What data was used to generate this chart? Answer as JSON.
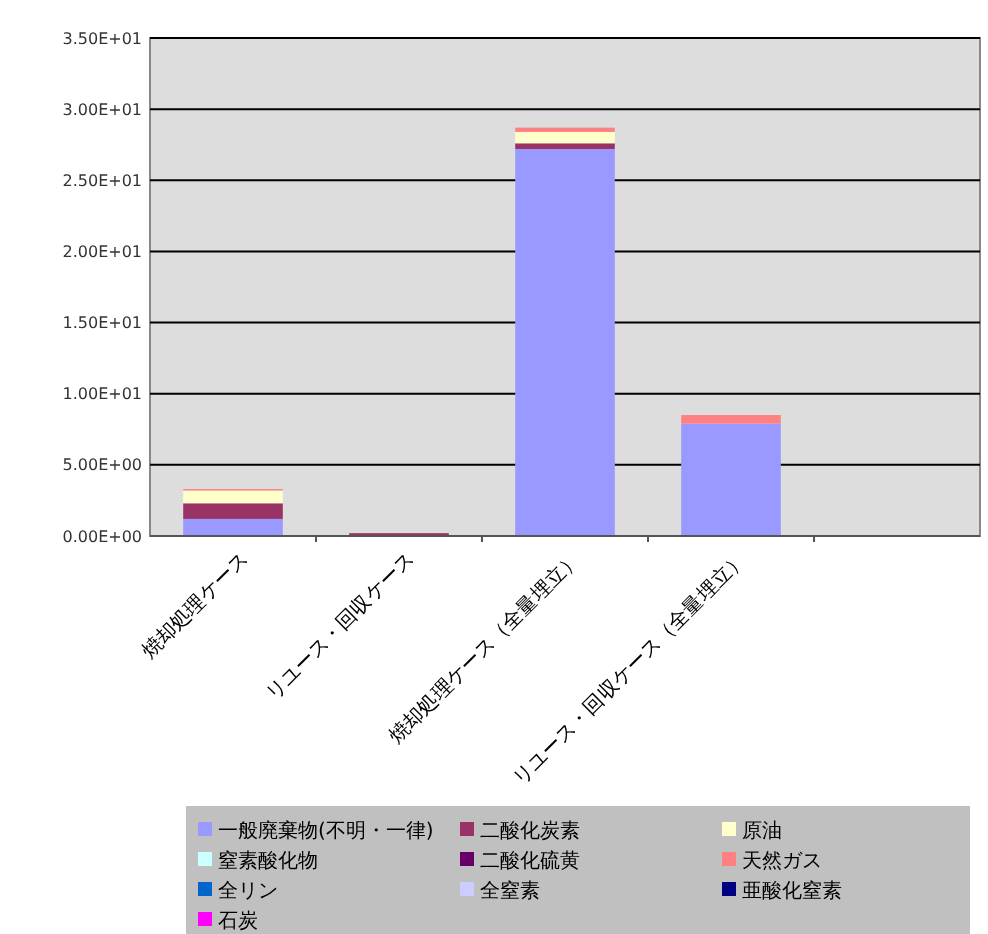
{
  "chart_data": {
    "type": "bar",
    "stacked": true,
    "categories": [
      "焼却処理ケース",
      "リユース・回収ケース",
      "焼却処理ケース（全量埋立）",
      "リユース・回収ケース（全量埋立）",
      null
    ],
    "series": [
      {
        "name": "一般廃棄物(不明・一律)",
        "color": "#9999ff",
        "values": [
          1.2,
          null,
          27.2,
          7.9,
          0
        ]
      },
      {
        "name": "二酸化炭素",
        "color": "#993366",
        "values": [
          1.1,
          0.2,
          0.4,
          0,
          0
        ]
      },
      {
        "name": "原油",
        "color": "#ffffcc",
        "values": [
          0.9,
          0,
          0.8,
          0,
          0
        ]
      },
      {
        "name": "窒素酸化物",
        "color": "#ccffff",
        "values": [
          0,
          0,
          0,
          0,
          0
        ]
      },
      {
        "name": "二酸化硫黄",
        "color": "#660066",
        "values": [
          0,
          0,
          0,
          0,
          0
        ]
      },
      {
        "name": "天然ガス",
        "color": "#ff8080",
        "values": [
          0.1,
          0,
          0.3,
          0.6,
          0
        ]
      },
      {
        "name": "全リン",
        "color": "#0066cc",
        "values": [
          0,
          0,
          0,
          0,
          0
        ]
      },
      {
        "name": "全窒素",
        "color": "#ccccff",
        "values": [
          0,
          0,
          0,
          0,
          0
        ]
      },
      {
        "name": "亜酸化窒素",
        "color": "#000080",
        "values": [
          0,
          0,
          0,
          0,
          0
        ]
      },
      {
        "name": "石炭",
        "color": "#ff00ff",
        "values": [
          0,
          0,
          0,
          0,
          0
        ]
      }
    ],
    "ylim": [
      0,
      35
    ],
    "yticks": [
      {
        "value": 0,
        "label": "0.00E+00"
      },
      {
        "value": 5,
        "label": "5.00E+00"
      },
      {
        "value": 10,
        "label": "1.00E+01"
      },
      {
        "value": 15,
        "label": "1.50E+01"
      },
      {
        "value": 20,
        "label": "2.00E+01"
      },
      {
        "value": 25,
        "label": "2.50E+01"
      },
      {
        "value": 30,
        "label": "3.00E+01"
      },
      {
        "value": 35,
        "label": "3.50E+01"
      }
    ],
    "grid": "y",
    "legend": "bottom"
  }
}
